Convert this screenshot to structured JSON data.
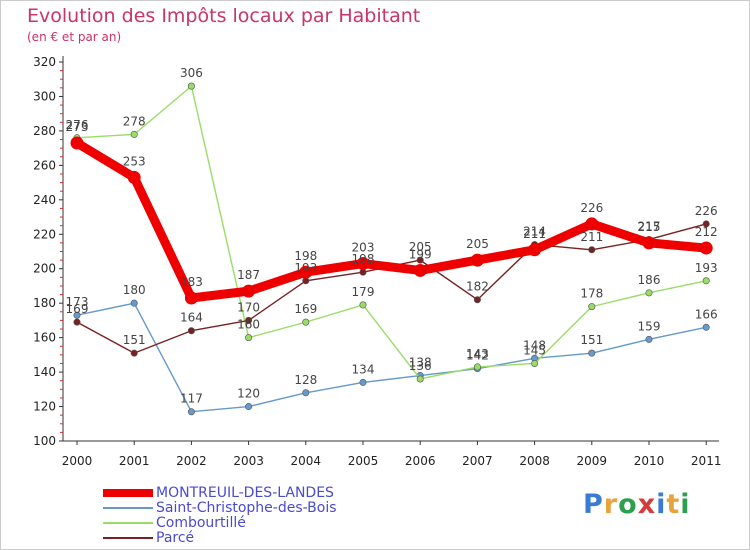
{
  "header": {
    "title": "Evolution des Impôts locaux par Habitant",
    "subtitle": "(en € et par an)"
  },
  "brand": {
    "logo_text": "Proxiti",
    "letter_colors": [
      "#3a7bd5",
      "#e8a33d",
      "#2e9e4f",
      "#d63b3b",
      "#3a7bd5",
      "#e8a33d",
      "#2e9e4f"
    ]
  },
  "chart_data": {
    "type": "line",
    "title": "Evolution des Impôts locaux par Habitant",
    "ylabel": "(en € et par an)",
    "xlabel": "",
    "ylim": [
      100,
      320
    ],
    "yticks": [
      100,
      120,
      140,
      160,
      180,
      200,
      220,
      240,
      260,
      280,
      300,
      320
    ],
    "grid": false,
    "categories": [
      "2000",
      "2001",
      "2002",
      "2003",
      "2004",
      "2005",
      "2006",
      "2007",
      "2008",
      "2009",
      "2010",
      "2011"
    ],
    "series": [
      {
        "name": "MONTREUIL-DES-LANDES",
        "color": "#ee0000",
        "emphasis": true,
        "values": [
          273,
          253,
          183,
          187,
          198,
          203,
          199,
          205,
          211,
          226,
          215,
          212
        ]
      },
      {
        "name": "Saint-Christophe-des-Bois",
        "color": "#6699cc",
        "emphasis": false,
        "values": [
          173,
          180,
          117,
          120,
          128,
          134,
          138,
          142,
          148,
          151,
          159,
          166
        ]
      },
      {
        "name": "Combourtillé",
        "color": "#99dd66",
        "emphasis": false,
        "values": [
          276,
          278,
          306,
          160,
          169,
          179,
          136,
          143,
          145,
          178,
          186,
          193
        ]
      },
      {
        "name": "Parcé",
        "color": "#772222",
        "emphasis": false,
        "values": [
          169,
          151,
          164,
          170,
          193,
          198,
          205,
          182,
          214,
          211,
          217,
          226
        ]
      }
    ]
  }
}
